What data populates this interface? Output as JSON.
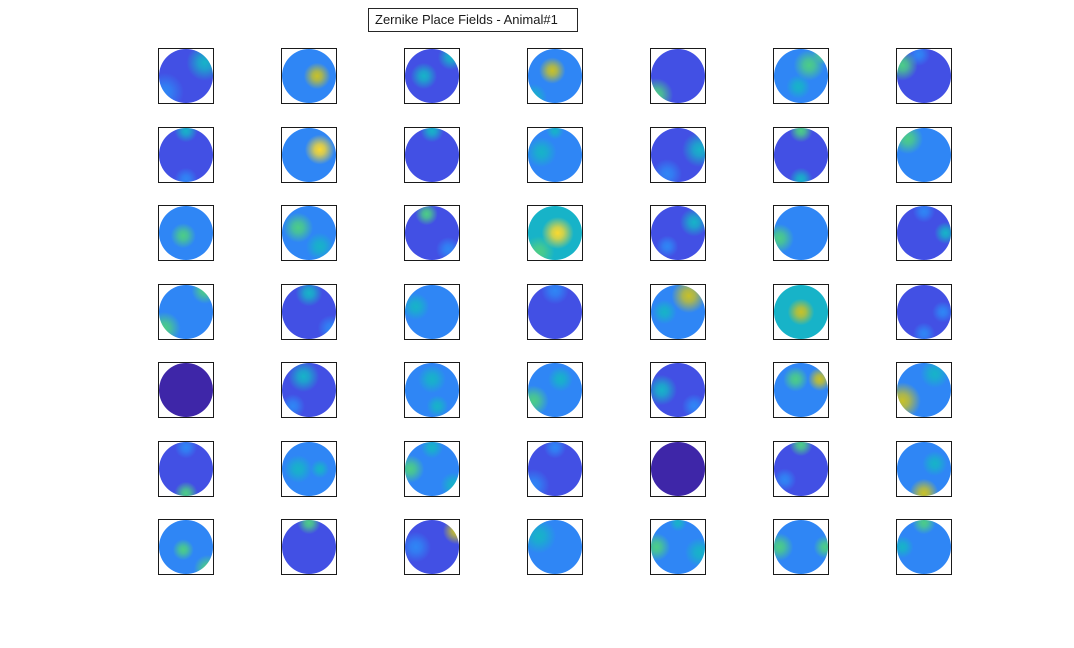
{
  "figure": {
    "title": "Zernike Place Fields - Animal#1"
  },
  "chart_data": {
    "type": "heatmap",
    "title": "Zernike Place Fields - Animal#1",
    "rows": 7,
    "cols": 7,
    "colormap": [
      "#3e26a8",
      "#4250e4",
      "#2f86f5",
      "#17b3c8",
      "#4ccd87",
      "#c8c128",
      "#fbd92f"
    ],
    "cells": [
      [
        {
          "base": 0.18,
          "blobs": [
            [
              0.85,
              0.25,
              0.3,
              0.5
            ],
            [
              0.1,
              0.8,
              0.3,
              0.3
            ]
          ]
        },
        {
          "base": 0.3,
          "blobs": [
            [
              0.65,
              0.5,
              0.3,
              0.9
            ],
            [
              0.2,
              0.35,
              0.3,
              0.4
            ],
            [
              0.5,
              0.9,
              0.3,
              0.3
            ]
          ]
        },
        {
          "base": 0.22,
          "blobs": [
            [
              0.35,
              0.5,
              0.3,
              0.45
            ],
            [
              0.85,
              0.15,
              0.2,
              0.5
            ]
          ]
        },
        {
          "base": 0.28,
          "blobs": [
            [
              0.45,
              0.4,
              0.3,
              0.8
            ],
            [
              0.1,
              0.9,
              0.2,
              0.5
            ]
          ]
        },
        {
          "base": 0.2,
          "blobs": [
            [
              0.1,
              0.85,
              0.25,
              0.6
            ],
            [
              0.5,
              0.5,
              0.3,
              0.2
            ]
          ]
        },
        {
          "base": 0.3,
          "blobs": [
            [
              0.65,
              0.3,
              0.3,
              0.6
            ],
            [
              0.45,
              0.7,
              0.25,
              0.5
            ],
            [
              0.9,
              0.1,
              0.15,
              0.6
            ]
          ]
        },
        {
          "base": 0.15,
          "blobs": [
            [
              0.1,
              0.3,
              0.25,
              0.7
            ],
            [
              0.4,
              0.1,
              0.2,
              0.4
            ]
          ]
        }
      ],
      [
        {
          "base": 0.18,
          "blobs": [
            [
              0.5,
              0.05,
              0.2,
              0.5
            ],
            [
              0.5,
              0.95,
              0.2,
              0.4
            ]
          ]
        },
        {
          "base": 0.3,
          "blobs": [
            [
              0.7,
              0.4,
              0.3,
              0.95
            ],
            [
              0.2,
              0.5,
              0.25,
              0.4
            ]
          ]
        },
        {
          "base": 0.15,
          "blobs": [
            [
              0.5,
              0.05,
              0.2,
              0.45
            ]
          ]
        },
        {
          "base": 0.25,
          "blobs": [
            [
              0.25,
              0.45,
              0.3,
              0.55
            ],
            [
              0.5,
              0.05,
              0.15,
              0.5
            ]
          ]
        },
        {
          "base": 0.22,
          "blobs": [
            [
              0.9,
              0.4,
              0.3,
              0.5
            ],
            [
              0.3,
              0.85,
              0.25,
              0.4
            ]
          ]
        },
        {
          "base": 0.2,
          "blobs": [
            [
              0.5,
              0.05,
              0.2,
              0.6
            ],
            [
              0.5,
              0.95,
              0.2,
              0.5
            ]
          ]
        },
        {
          "base": 0.25,
          "blobs": [
            [
              0.2,
              0.2,
              0.25,
              0.6
            ],
            [
              0.85,
              0.8,
              0.2,
              0.4
            ]
          ]
        }
      ],
      [
        {
          "base": 0.28,
          "blobs": [
            [
              0.45,
              0.55,
              0.3,
              0.7
            ],
            [
              0.9,
              0.3,
              0.2,
              0.4
            ]
          ]
        },
        {
          "base": 0.3,
          "blobs": [
            [
              0.3,
              0.4,
              0.3,
              0.6
            ],
            [
              0.7,
              0.75,
              0.25,
              0.5
            ]
          ]
        },
        {
          "base": 0.2,
          "blobs": [
            [
              0.4,
              0.15,
              0.2,
              0.6
            ],
            [
              0.8,
              0.8,
              0.2,
              0.3
            ]
          ]
        },
        {
          "base": 0.5,
          "blobs": [
            [
              0.55,
              0.5,
              0.4,
              0.95
            ],
            [
              0.2,
              0.85,
              0.25,
              0.6
            ]
          ]
        },
        {
          "base": 0.22,
          "blobs": [
            [
              0.8,
              0.3,
              0.25,
              0.5
            ],
            [
              0.3,
              0.75,
              0.2,
              0.4
            ]
          ]
        },
        {
          "base": 0.25,
          "blobs": [
            [
              0.1,
              0.6,
              0.25,
              0.7
            ],
            [
              0.8,
              0.2,
              0.2,
              0.4
            ]
          ]
        },
        {
          "base": 0.18,
          "blobs": [
            [
              0.9,
              0.5,
              0.2,
              0.5
            ],
            [
              0.5,
              0.1,
              0.2,
              0.4
            ]
          ]
        }
      ],
      [
        {
          "base": 0.25,
          "blobs": [
            [
              0.85,
              0.1,
              0.2,
              0.7
            ],
            [
              0.1,
              0.8,
              0.25,
              0.6
            ]
          ]
        },
        {
          "base": 0.22,
          "blobs": [
            [
              0.5,
              0.15,
              0.25,
              0.45
            ],
            [
              0.9,
              0.8,
              0.2,
              0.3
            ]
          ]
        },
        {
          "base": 0.25,
          "blobs": [
            [
              0.2,
              0.4,
              0.25,
              0.5
            ],
            [
              0.9,
              0.7,
              0.2,
              0.4
            ]
          ]
        },
        {
          "base": 0.2,
          "blobs": [
            [
              0.5,
              0.1,
              0.25,
              0.4
            ]
          ]
        },
        {
          "base": 0.35,
          "blobs": [
            [
              0.7,
              0.2,
              0.3,
              0.85
            ],
            [
              0.25,
              0.5,
              0.25,
              0.5
            ]
          ]
        },
        {
          "base": 0.45,
          "blobs": [
            [
              0.5,
              0.5,
              0.35,
              0.9
            ],
            [
              0.5,
              0.1,
              0.2,
              0.5
            ]
          ]
        },
        {
          "base": 0.15,
          "blobs": [
            [
              0.85,
              0.5,
              0.2,
              0.4
            ],
            [
              0.5,
              0.9,
              0.2,
              0.3
            ]
          ]
        }
      ],
      [
        {
          "base": 0.08,
          "blobs": [
            [
              0.5,
              0.5,
              0.3,
              0.05
            ]
          ]
        },
        {
          "base": 0.2,
          "blobs": [
            [
              0.4,
              0.25,
              0.3,
              0.45
            ],
            [
              0.2,
              0.8,
              0.2,
              0.3
            ]
          ]
        },
        {
          "base": 0.28,
          "blobs": [
            [
              0.5,
              0.3,
              0.3,
              0.5
            ],
            [
              0.6,
              0.8,
              0.2,
              0.45
            ]
          ]
        },
        {
          "base": 0.3,
          "blobs": [
            [
              0.1,
              0.7,
              0.25,
              0.7
            ],
            [
              0.6,
              0.3,
              0.25,
              0.5
            ]
          ]
        },
        {
          "base": 0.22,
          "blobs": [
            [
              0.2,
              0.5,
              0.3,
              0.5
            ],
            [
              0.8,
              0.8,
              0.2,
              0.4
            ]
          ]
        },
        {
          "base": 0.32,
          "blobs": [
            [
              0.85,
              0.3,
              0.2,
              0.8
            ],
            [
              0.4,
              0.3,
              0.25,
              0.6
            ]
          ]
        },
        {
          "base": 0.32,
          "blobs": [
            [
              0.1,
              0.7,
              0.3,
              0.9
            ],
            [
              0.7,
              0.2,
              0.25,
              0.5
            ]
          ]
        }
      ],
      [
        {
          "base": 0.2,
          "blobs": [
            [
              0.5,
              0.95,
              0.2,
              0.6
            ],
            [
              0.5,
              0.1,
              0.2,
              0.3
            ]
          ]
        },
        {
          "base": 0.3,
          "blobs": [
            [
              0.3,
              0.5,
              0.3,
              0.5
            ],
            [
              0.7,
              0.5,
              0.2,
              0.45
            ]
          ]
        },
        {
          "base": 0.28,
          "blobs": [
            [
              0.1,
              0.5,
              0.25,
              0.6
            ],
            [
              0.5,
              0.1,
              0.2,
              0.5
            ],
            [
              0.9,
              0.8,
              0.2,
              0.5
            ]
          ]
        },
        {
          "base": 0.12,
          "blobs": [
            [
              0.1,
              0.8,
              0.25,
              0.4
            ],
            [
              0.5,
              0.1,
              0.2,
              0.25
            ]
          ]
        },
        {
          "base": 0.05,
          "blobs": [
            [
              0.5,
              0.5,
              0.3,
              0.05
            ]
          ]
        },
        {
          "base": 0.2,
          "blobs": [
            [
              0.5,
              0.05,
              0.2,
              0.7
            ],
            [
              0.2,
              0.7,
              0.2,
              0.3
            ]
          ]
        },
        {
          "base": 0.3,
          "blobs": [
            [
              0.5,
              0.95,
              0.25,
              0.8
            ],
            [
              0.7,
              0.4,
              0.25,
              0.5
            ]
          ]
        }
      ],
      [
        {
          "base": 0.3,
          "blobs": [
            [
              0.45,
              0.55,
              0.25,
              0.7
            ],
            [
              0.9,
              0.9,
              0.2,
              0.7
            ],
            [
              0.2,
              0.2,
              0.2,
              0.4
            ]
          ]
        },
        {
          "base": 0.12,
          "blobs": [
            [
              0.5,
              0.05,
              0.2,
              0.6
            ]
          ]
        },
        {
          "base": 0.22,
          "blobs": [
            [
              0.95,
              0.2,
              0.2,
              0.8
            ],
            [
              0.2,
              0.5,
              0.3,
              0.35
            ]
          ]
        },
        {
          "base": 0.25,
          "blobs": [
            [
              0.2,
              0.3,
              0.3,
              0.5
            ],
            [
              0.7,
              0.9,
              0.2,
              0.3
            ]
          ]
        },
        {
          "base": 0.25,
          "blobs": [
            [
              0.1,
              0.5,
              0.25,
              0.6
            ],
            [
              0.9,
              0.6,
              0.25,
              0.5
            ],
            [
              0.5,
              0.05,
              0.15,
              0.5
            ]
          ]
        },
        {
          "base": 0.3,
          "blobs": [
            [
              0.1,
              0.5,
              0.25,
              0.7
            ],
            [
              0.95,
              0.5,
              0.2,
              0.6
            ]
          ]
        },
        {
          "base": 0.28,
          "blobs": [
            [
              0.5,
              0.05,
              0.2,
              0.6
            ],
            [
              0.1,
              0.5,
              0.2,
              0.5
            ]
          ]
        }
      ]
    ]
  }
}
